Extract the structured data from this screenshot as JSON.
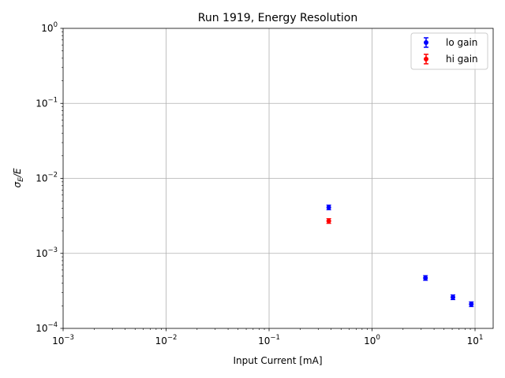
{
  "chart_data": {
    "type": "scatter",
    "title": "Run 1919, Energy Resolution",
    "xlabel": "Input Current [mA]",
    "ylabel_main": "σ",
    "ylabel_sub": "E",
    "ylabel_tail": "/E",
    "xscale": "log",
    "yscale": "log",
    "xlim": [
      0.001,
      15
    ],
    "ylim": [
      0.0001,
      1
    ],
    "grid": true,
    "legend_position": "top-right",
    "x_ticks": [
      {
        "value": 0.001,
        "base": "10",
        "exp": "−3"
      },
      {
        "value": 0.01,
        "base": "10",
        "exp": "−2"
      },
      {
        "value": 0.1,
        "base": "10",
        "exp": "−1"
      },
      {
        "value": 1,
        "base": "10",
        "exp": "0"
      },
      {
        "value": 10,
        "base": "10",
        "exp": "1"
      }
    ],
    "y_ticks": [
      {
        "value": 0.0001,
        "base": "10",
        "exp": "−4"
      },
      {
        "value": 0.001,
        "base": "10",
        "exp": "−3"
      },
      {
        "value": 0.01,
        "base": "10",
        "exp": "−2"
      },
      {
        "value": 0.1,
        "base": "10",
        "exp": "−1"
      },
      {
        "value": 1,
        "base": "10",
        "exp": "0"
      }
    ],
    "series": [
      {
        "name": "lo gain",
        "color": "#0000ff",
        "points": [
          {
            "x": 0.38,
            "y": 0.0041
          },
          {
            "x": 3.3,
            "y": 0.00047
          },
          {
            "x": 6.1,
            "y": 0.00026
          },
          {
            "x": 9.2,
            "y": 0.00021
          }
        ]
      },
      {
        "name": "hi gain",
        "color": "#ff0000",
        "points": [
          {
            "x": 0.38,
            "y": 0.0027
          }
        ]
      }
    ]
  }
}
